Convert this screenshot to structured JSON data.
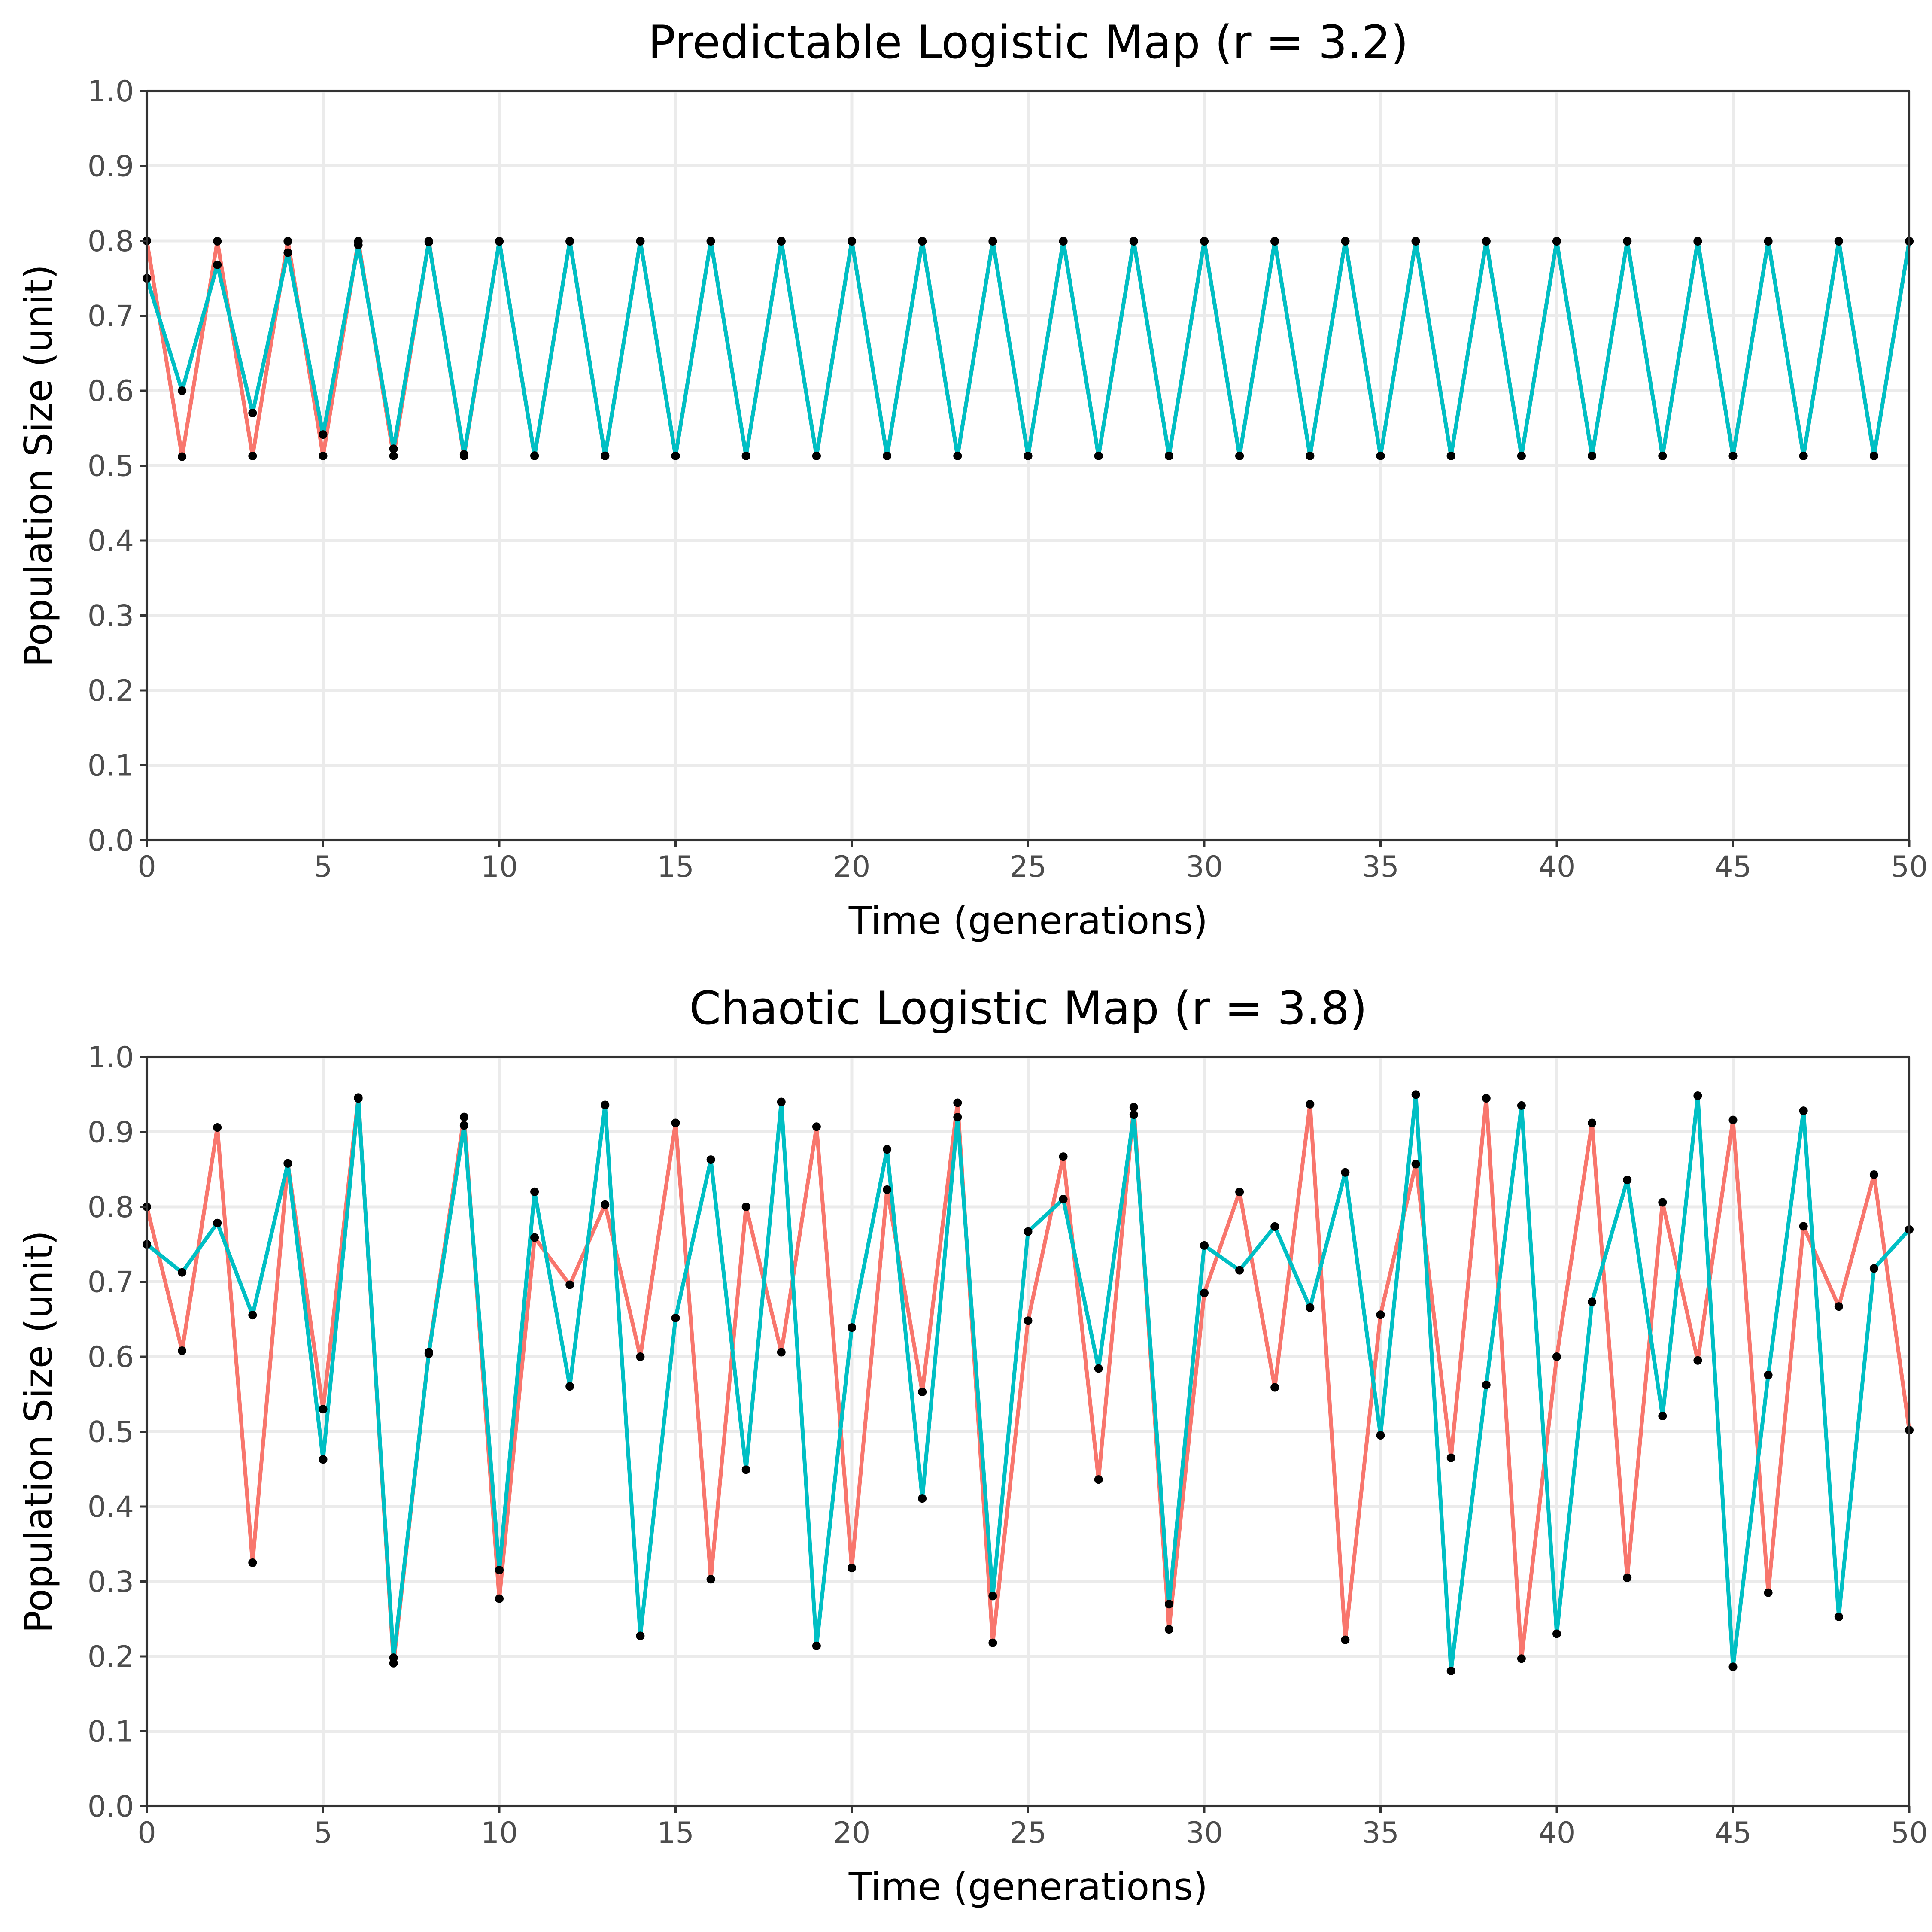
{
  "chart_data": [
    {
      "type": "line",
      "title": "Predictable Logistic Map (r = 3.2)",
      "xlabel": "Time (generations)",
      "ylabel": "Population Size (unit)",
      "xlim": [
        0,
        50
      ],
      "ylim": [
        0,
        1
      ],
      "x_ticks": [
        "0",
        "5",
        "10",
        "15",
        "20",
        "25",
        "30",
        "35",
        "40",
        "45",
        "50"
      ],
      "y_ticks": [
        "0.0",
        "0.1",
        "0.2",
        "0.3",
        "0.4",
        "0.5",
        "0.6",
        "0.7",
        "0.8",
        "0.9",
        "1.0"
      ],
      "grid": true,
      "legend": "none",
      "marker_color": "#000000",
      "series": [
        {
          "color": "#F8766D",
          "x_start": 0,
          "values": [
            0.8,
            0.512,
            0.7995,
            0.5129,
            0.7995,
            0.513,
            0.7995,
            0.513,
            0.7995,
            0.513,
            0.7995,
            0.513,
            0.7995,
            0.513,
            0.7995,
            0.513,
            0.7995,
            0.513,
            0.7995,
            0.513,
            0.7995,
            0.513,
            0.7995,
            0.513,
            0.7995,
            0.513,
            0.7995,
            0.513,
            0.7995,
            0.513,
            0.7995,
            0.513,
            0.7995,
            0.513,
            0.7995,
            0.513,
            0.7995,
            0.513,
            0.7995,
            0.513,
            0.7995,
            0.513,
            0.7995,
            0.513,
            0.7995,
            0.513,
            0.7995,
            0.513,
            0.7995,
            0.513,
            0.7995
          ]
        },
        {
          "color": "#00BFC4",
          "x_start": 0,
          "values": [
            0.75,
            0.6,
            0.768,
            0.5702,
            0.7842,
            0.5415,
            0.7945,
            0.5225,
            0.7984,
            0.515,
            0.7993,
            0.5134,
            0.7995,
            0.5131,
            0.7995,
            0.513,
            0.7995,
            0.513,
            0.7995,
            0.513,
            0.7995,
            0.513,
            0.7995,
            0.513,
            0.7995,
            0.513,
            0.7995,
            0.513,
            0.7995,
            0.513,
            0.7995,
            0.513,
            0.7995,
            0.513,
            0.7995,
            0.513,
            0.7995,
            0.513,
            0.7995,
            0.513,
            0.7995,
            0.513,
            0.7995,
            0.513,
            0.7995,
            0.513,
            0.7995,
            0.513,
            0.7995,
            0.513,
            0.7995
          ]
        }
      ]
    },
    {
      "type": "line",
      "title": "Chaotic Logistic Map (r = 3.8)",
      "xlabel": "Time (generations)",
      "ylabel": "Population Size (unit)",
      "xlim": [
        0,
        50
      ],
      "ylim": [
        0,
        1
      ],
      "x_ticks": [
        "0",
        "5",
        "10",
        "15",
        "20",
        "25",
        "30",
        "35",
        "40",
        "45",
        "50"
      ],
      "y_ticks": [
        "0.0",
        "0.1",
        "0.2",
        "0.3",
        "0.4",
        "0.5",
        "0.6",
        "0.7",
        "0.8",
        "0.9",
        "1.0"
      ],
      "grid": true,
      "legend": "none",
      "marker_color": "#000000",
      "series": [
        {
          "color": "#F8766D",
          "x_start": 0,
          "values": [
            0.8,
            0.608,
            0.906,
            0.325,
            0.858,
            0.53,
            0.946,
            0.191,
            0.606,
            0.92,
            0.277,
            0.759,
            0.696,
            0.803,
            0.6,
            0.912,
            0.303,
            0.8,
            0.606,
            0.907,
            0.318,
            0.823,
            0.553,
            0.939,
            0.218,
            0.648,
            0.867,
            0.436,
            0.933,
            0.236,
            0.685,
            0.82,
            0.559,
            0.937,
            0.222,
            0.656,
            0.857,
            0.465,
            0.945,
            0.197,
            0.6,
            0.912,
            0.305,
            0.806,
            0.595,
            0.916,
            0.285,
            0.774,
            0.667,
            0.843,
            0.502
          ]
        },
        {
          "color": "#00BFC4",
          "x_start": 0,
          "values": [
            0.75,
            0.7125,
            0.7784,
            0.6555,
            0.858,
            0.4629,
            0.9448,
            0.1982,
            0.6041,
            0.9087,
            0.3152,
            0.8202,
            0.5604,
            0.9361,
            0.2273,
            0.6516,
            0.863,
            0.4491,
            0.9401,
            0.2139,
            0.6389,
            0.8767,
            0.4108,
            0.9197,
            0.2806,
            0.767,
            0.8103,
            0.5842,
            0.9231,
            0.2698,
            0.7485,
            0.7154,
            0.7737,
            0.6654,
            0.846,
            0.4951,
            0.95,
            0.1806,
            0.5623,
            0.9353,
            0.2301,
            0.6732,
            0.836,
            0.5209,
            0.9484,
            0.1861,
            0.5755,
            0.9283,
            0.2528,
            0.7178,
            0.7697
          ]
        }
      ]
    }
  ]
}
